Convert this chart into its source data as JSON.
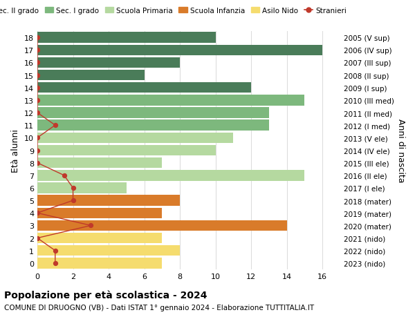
{
  "ages": [
    18,
    17,
    16,
    15,
    14,
    13,
    12,
    11,
    10,
    9,
    8,
    7,
    6,
    5,
    4,
    3,
    2,
    1,
    0
  ],
  "right_labels": [
    "2005 (V sup)",
    "2006 (IV sup)",
    "2007 (III sup)",
    "2008 (II sup)",
    "2009 (I sup)",
    "2010 (III med)",
    "2011 (II med)",
    "2012 (I med)",
    "2013 (V ele)",
    "2014 (IV ele)",
    "2015 (III ele)",
    "2016 (II ele)",
    "2017 (I ele)",
    "2018 (mater)",
    "2019 (mater)",
    "2020 (mater)",
    "2021 (nido)",
    "2022 (nido)",
    "2023 (nido)"
  ],
  "bar_values": [
    10,
    16,
    8,
    6,
    12,
    15,
    13,
    13,
    11,
    10,
    7,
    15,
    5,
    8,
    7,
    14,
    7,
    8,
    7
  ],
  "bar_colors": [
    "#4a7c59",
    "#4a7c59",
    "#4a7c59",
    "#4a7c59",
    "#4a7c59",
    "#7db87d",
    "#7db87d",
    "#7db87d",
    "#b5d9a0",
    "#b5d9a0",
    "#b5d9a0",
    "#b5d9a0",
    "#b5d9a0",
    "#d97b2a",
    "#d97b2a",
    "#d97b2a",
    "#f5dc6e",
    "#f5dc6e",
    "#f5dc6e"
  ],
  "stranieri_x": [
    0,
    0,
    0,
    0,
    0,
    0,
    0,
    1,
    0,
    0,
    0,
    1.5,
    2,
    2,
    0,
    3,
    0,
    1,
    1
  ],
  "title": "Popolazione per età scolastica - 2024",
  "subtitle": "COMUNE DI DRUOGNO (VB) - Dati ISTAT 1° gennaio 2024 - Elaborazione TUTTITALIA.IT",
  "ylabel_left": "Età alunni",
  "ylabel_right": "Anni di nascita",
  "legend_items": [
    {
      "label": "Sec. II grado",
      "color": "#4a7c59"
    },
    {
      "label": "Sec. I grado",
      "color": "#7db87d"
    },
    {
      "label": "Scuola Primaria",
      "color": "#b5d9a0"
    },
    {
      "label": "Scuola Infanzia",
      "color": "#d97b2a"
    },
    {
      "label": "Asilo Nido",
      "color": "#f5dc6e"
    },
    {
      "label": "Stranieri",
      "color": "#c0392b"
    }
  ],
  "xticks": [
    0,
    2,
    4,
    6,
    8,
    10,
    12,
    14,
    16
  ],
  "xlim": [
    0,
    17
  ],
  "bg_color": "#ffffff",
  "grid_color": "#dddddd"
}
